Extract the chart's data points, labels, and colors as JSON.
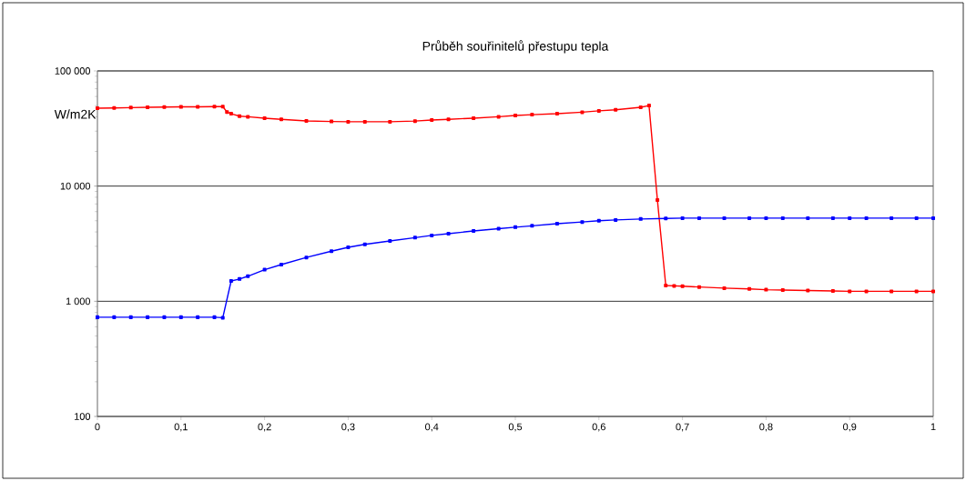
{
  "chart_data": {
    "type": "line",
    "title": "Průběh souřinitelů přestupu tepla",
    "ylabel": "W/m2K",
    "log": "y",
    "grid": "y",
    "marker": "square",
    "line_style": "solid",
    "xlim": [
      0,
      1
    ],
    "ylim": [
      100,
      100000
    ],
    "xticks": [
      0,
      {
        "value": 0.1,
        "label": "0,1"
      },
      {
        "value": 0.2,
        "label": "0,2"
      },
      {
        "value": 0.3,
        "label": "0,3"
      },
      {
        "value": 0.4,
        "label": "0,4"
      },
      {
        "value": 0.5,
        "label": "0,5"
      },
      {
        "value": 0.6,
        "label": "0,6"
      },
      {
        "value": 0.7,
        "label": "0,7"
      },
      {
        "value": 0.8,
        "label": "0,8"
      },
      {
        "value": 0.9,
        "label": "0,9"
      },
      1
    ],
    "yticks": [
      100,
      {
        "value": 1000,
        "label": "1 000"
      },
      {
        "value": 10000,
        "label": "10 000"
      },
      {
        "value": 100000,
        "label": "100 000"
      }
    ],
    "series": [
      {
        "color": "#ff0000",
        "x": [
          0,
          0.02,
          0.04,
          0.06,
          0.08,
          0.1,
          0.12,
          0.14,
          0.15,
          0.155,
          0.16,
          0.17,
          0.18,
          0.2,
          0.22,
          0.25,
          0.28,
          0.3,
          0.32,
          0.35,
          0.38,
          0.4,
          0.42,
          0.45,
          0.48,
          0.5,
          0.52,
          0.55,
          0.58,
          0.6,
          0.62,
          0.65,
          0.66,
          0.67,
          0.68,
          0.69,
          0.7,
          0.72,
          0.75,
          0.78,
          0.8,
          0.82,
          0.85,
          0.88,
          0.9,
          0.92,
          0.95,
          0.98,
          1
        ],
        "values": [
          47400,
          47700,
          48000,
          48300,
          48500,
          48700,
          48800,
          49000,
          49000,
          44000,
          42500,
          40500,
          40000,
          38900,
          38000,
          36800,
          36400,
          36200,
          36200,
          36200,
          36700,
          37500,
          38000,
          38900,
          40000,
          41000,
          41700,
          42500,
          43800,
          45000,
          46000,
          48300,
          50000,
          7570,
          1370,
          1360,
          1350,
          1330,
          1300,
          1280,
          1260,
          1250,
          1240,
          1230,
          1220,
          1220,
          1220,
          1220,
          1220
        ]
      },
      {
        "color": "#0000ff",
        "x": [
          0,
          0.02,
          0.04,
          0.06,
          0.08,
          0.1,
          0.12,
          0.14,
          0.15,
          0.16,
          0.17,
          0.18,
          0.2,
          0.22,
          0.25,
          0.28,
          0.3,
          0.32,
          0.35,
          0.38,
          0.4,
          0.42,
          0.45,
          0.48,
          0.5,
          0.52,
          0.55,
          0.58,
          0.6,
          0.62,
          0.65,
          0.68,
          0.7,
          0.72,
          0.75,
          0.78,
          0.8,
          0.82,
          0.85,
          0.88,
          0.9,
          0.92,
          0.95,
          0.98,
          1
        ],
        "values": [
          727,
          727,
          727,
          727,
          727,
          727,
          727,
          727,
          720,
          1500,
          1560,
          1650,
          1880,
          2080,
          2400,
          2720,
          2940,
          3120,
          3340,
          3570,
          3730,
          3860,
          4080,
          4270,
          4400,
          4520,
          4720,
          4880,
          5000,
          5080,
          5180,
          5240,
          5270,
          5270,
          5270,
          5270,
          5270,
          5270,
          5270,
          5270,
          5270,
          5270,
          5270,
          5270,
          5270
        ]
      }
    ]
  }
}
